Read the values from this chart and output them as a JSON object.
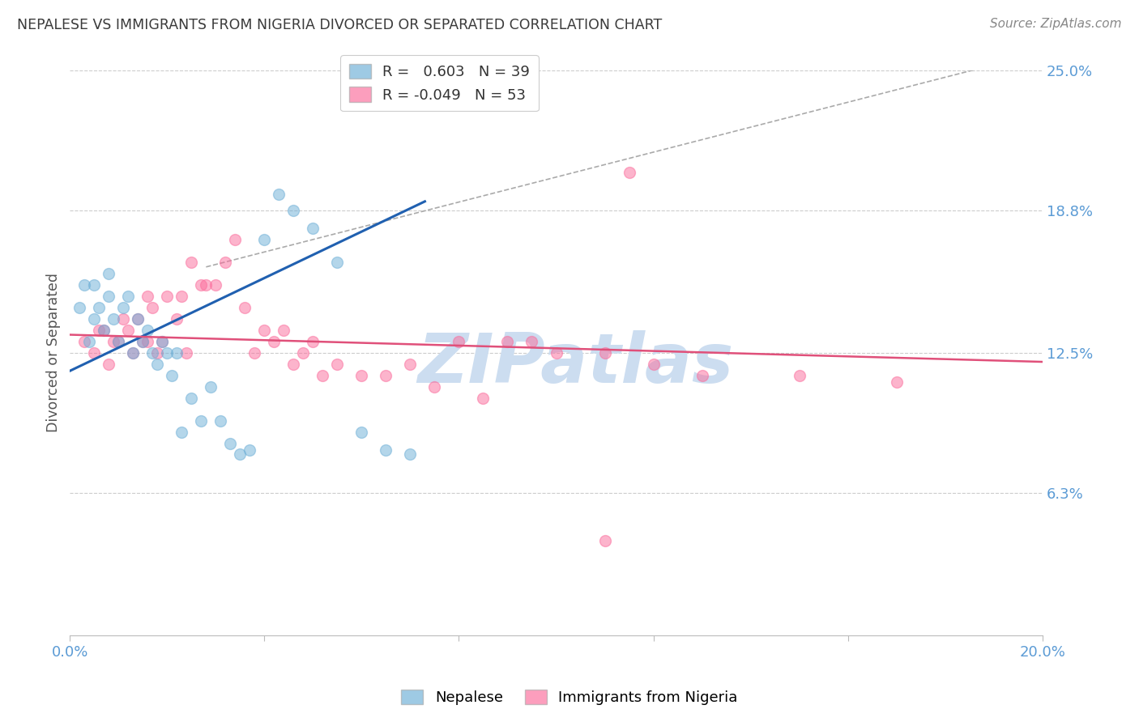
{
  "title": "NEPALESE VS IMMIGRANTS FROM NIGERIA DIVORCED OR SEPARATED CORRELATION CHART",
  "source": "Source: ZipAtlas.com",
  "ylabel": "Divorced or Separated",
  "xlim": [
    0.0,
    0.2
  ],
  "ylim": [
    0.0,
    0.25
  ],
  "x_ticks": [
    0.0,
    0.04,
    0.08,
    0.12,
    0.16,
    0.2
  ],
  "y_tick_values_right": [
    0.25,
    0.188,
    0.125,
    0.063
  ],
  "watermark": "ZIPatlas",
  "watermark_color": "#ccddf0",
  "background_color": "#ffffff",
  "grid_color": "#cccccc",
  "title_color": "#3a3a3a",
  "axis_label_color": "#5b9bd5",
  "marker_size": 100,
  "blue_color": "#6baed6",
  "pink_color": "#fb6a9a",
  "blue_line_color": "#2060b0",
  "pink_line_color": "#e0507a",
  "dashed_color": "#aaaaaa",
  "blue_scatter_x": [
    0.002,
    0.003,
    0.004,
    0.005,
    0.005,
    0.006,
    0.007,
    0.008,
    0.008,
    0.009,
    0.01,
    0.011,
    0.012,
    0.013,
    0.014,
    0.015,
    0.016,
    0.017,
    0.018,
    0.019,
    0.02,
    0.021,
    0.022,
    0.023,
    0.025,
    0.027,
    0.029,
    0.031,
    0.033,
    0.035,
    0.037,
    0.04,
    0.043,
    0.046,
    0.05,
    0.055,
    0.06,
    0.065,
    0.07
  ],
  "blue_scatter_y": [
    0.145,
    0.155,
    0.13,
    0.155,
    0.14,
    0.145,
    0.135,
    0.15,
    0.16,
    0.14,
    0.13,
    0.145,
    0.15,
    0.125,
    0.14,
    0.13,
    0.135,
    0.125,
    0.12,
    0.13,
    0.125,
    0.115,
    0.125,
    0.09,
    0.105,
    0.095,
    0.11,
    0.095,
    0.085,
    0.08,
    0.082,
    0.175,
    0.195,
    0.188,
    0.18,
    0.165,
    0.09,
    0.082,
    0.08
  ],
  "pink_scatter_x": [
    0.003,
    0.005,
    0.006,
    0.007,
    0.008,
    0.009,
    0.01,
    0.011,
    0.012,
    0.013,
    0.014,
    0.015,
    0.016,
    0.016,
    0.017,
    0.018,
    0.019,
    0.02,
    0.022,
    0.023,
    0.024,
    0.025,
    0.027,
    0.028,
    0.03,
    0.032,
    0.034,
    0.036,
    0.038,
    0.04,
    0.042,
    0.044,
    0.046,
    0.048,
    0.05,
    0.052,
    0.055,
    0.06,
    0.065,
    0.07,
    0.075,
    0.08,
    0.085,
    0.09,
    0.095,
    0.1,
    0.11,
    0.115,
    0.12,
    0.13,
    0.15,
    0.17,
    0.11
  ],
  "pink_scatter_y": [
    0.13,
    0.125,
    0.135,
    0.135,
    0.12,
    0.13,
    0.13,
    0.14,
    0.135,
    0.125,
    0.14,
    0.13,
    0.15,
    0.13,
    0.145,
    0.125,
    0.13,
    0.15,
    0.14,
    0.15,
    0.125,
    0.165,
    0.155,
    0.155,
    0.155,
    0.165,
    0.175,
    0.145,
    0.125,
    0.135,
    0.13,
    0.135,
    0.12,
    0.125,
    0.13,
    0.115,
    0.12,
    0.115,
    0.115,
    0.12,
    0.11,
    0.13,
    0.105,
    0.13,
    0.13,
    0.125,
    0.125,
    0.205,
    0.12,
    0.115,
    0.115,
    0.112,
    0.042
  ],
  "blue_line_x": [
    0.0,
    0.073
  ],
  "blue_line_y": [
    0.117,
    0.192
  ],
  "pink_line_x": [
    0.0,
    0.2
  ],
  "pink_line_y": [
    0.133,
    0.121
  ],
  "dashed_line_x": [
    0.028,
    0.2
  ],
  "dashed_line_y": [
    0.163,
    0.258
  ]
}
